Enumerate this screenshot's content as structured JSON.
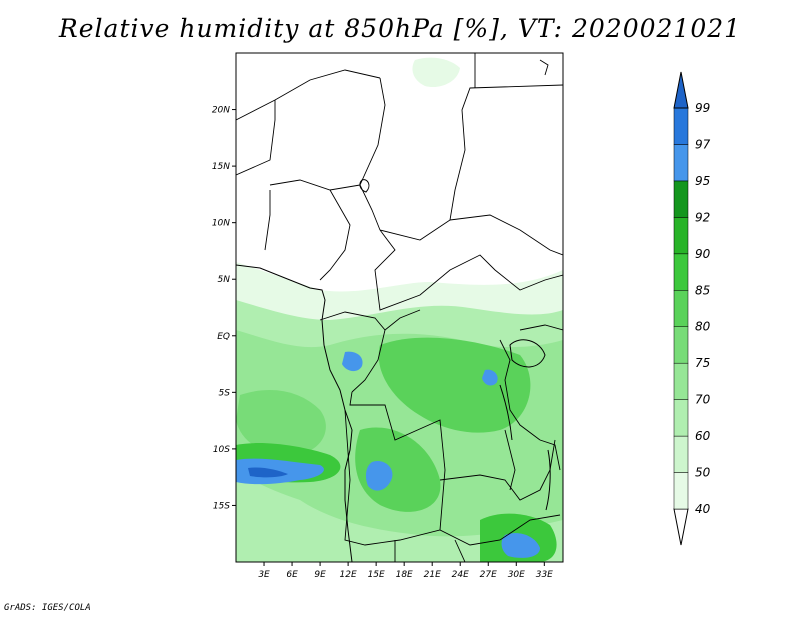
{
  "title": "Relative humidity at 850hPa [%], VT: 2020021021",
  "footer": "GrADS: IGES/COLA",
  "map": {
    "lon_range": [
      0,
      35
    ],
    "lat_range": [
      -20,
      25
    ],
    "x_ticks": [
      "3E",
      "6E",
      "9E",
      "12E",
      "15E",
      "18E",
      "21E",
      "24E",
      "27E",
      "30E",
      "33E"
    ],
    "y_ticks": [
      "20N",
      "15N",
      "10N",
      "5N",
      "EQ",
      "5S",
      "10S",
      "15S"
    ]
  },
  "colorbar": {
    "levels": [
      "40",
      "50",
      "60",
      "70",
      "75",
      "80",
      "85",
      "90",
      "92",
      "95",
      "97",
      "99"
    ],
    "colors": [
      "#ffffff",
      "#e6fae6",
      "#cdf5cd",
      "#b0eeb0",
      "#96e696",
      "#78dc78",
      "#5ad25a",
      "#3cc83c",
      "#28b428",
      "#14961e",
      "#4696eb",
      "#2878dc",
      "#1e64c8"
    ]
  }
}
